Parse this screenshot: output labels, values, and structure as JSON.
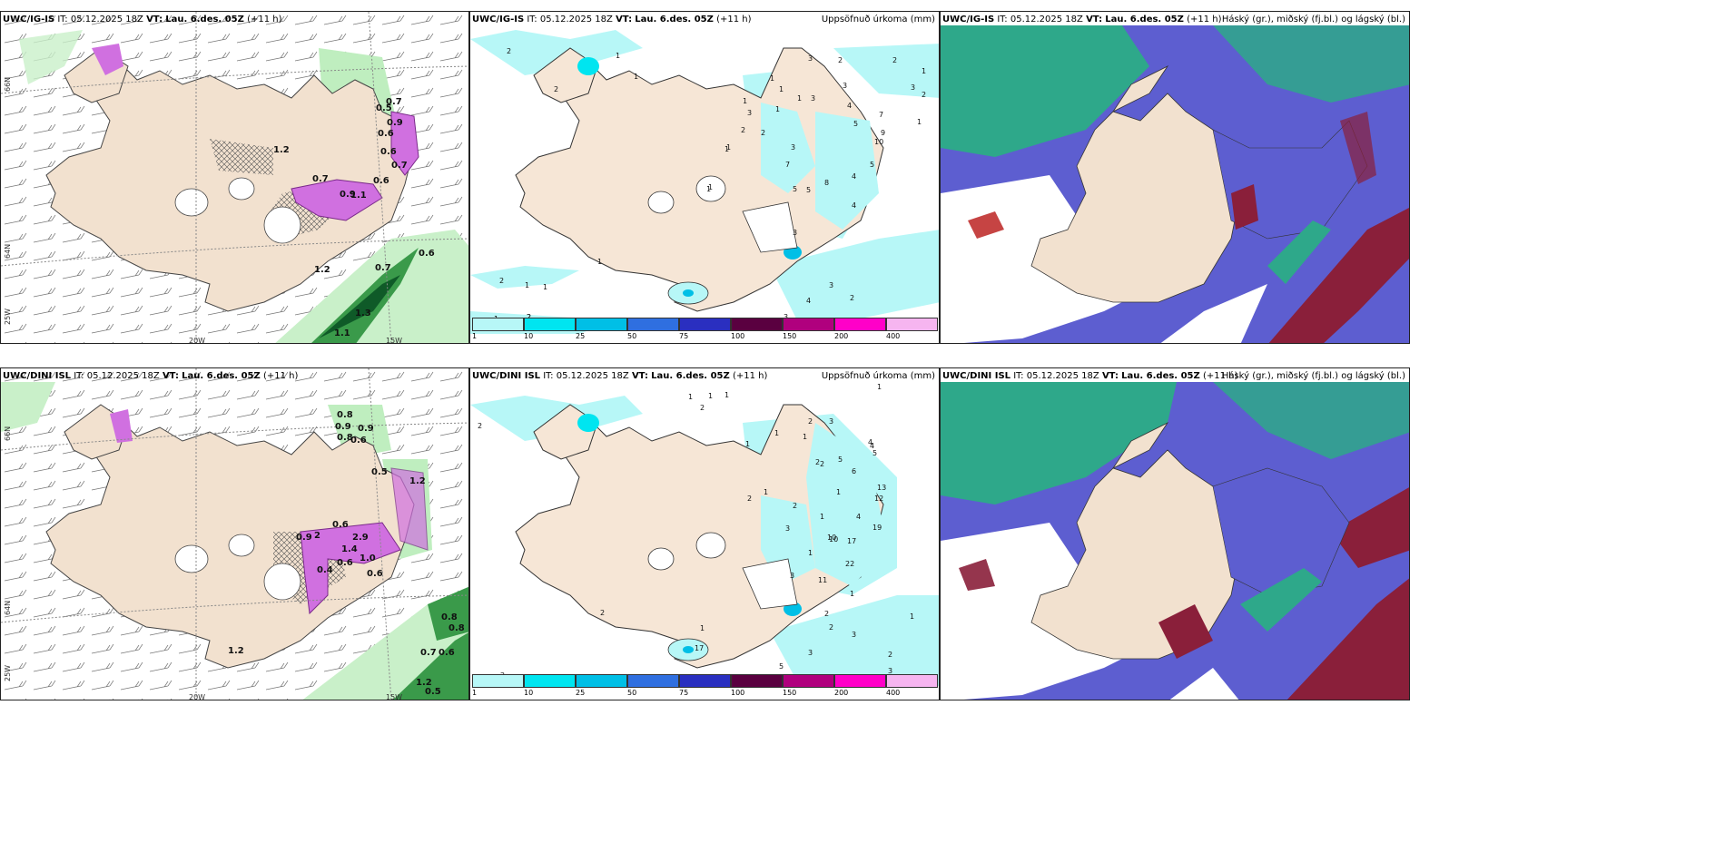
{
  "panels": {
    "p1": {
      "model": "UWC/IG-IS",
      "init_label": "IT:",
      "init": "05.12.2025 18Z",
      "valid_label": "VT:",
      "valid": "Lau. 6.des. 05Z",
      "lead": "(+11 h)",
      "right": ""
    },
    "p2": {
      "model": "UWC/IG-IS",
      "init_label": "IT:",
      "init": "05.12.2025 18Z",
      "valid_label": "VT:",
      "valid": "Lau. 6.des. 05Z",
      "lead": "(+11 h)",
      "right": "Uppsöfnuð úrkoma (mm)"
    },
    "p3": {
      "model": "UWC/IG-IS",
      "init_label": "IT:",
      "init": "05.12.2025 18Z",
      "valid_label": "VT:",
      "valid": "Lau. 6.des. 05Z",
      "lead": "(+11 h)",
      "right": "Háský (gr.), miðský (fj.bl.) og lágský (bl.)"
    },
    "p4": {
      "model": "UWC/DINI ISL",
      "init_label": "IT:",
      "init": "05.12.2025 18Z",
      "valid_label": "VT:",
      "valid": "Lau. 6.des. 05Z",
      "lead": "(+11 h)",
      "right": ""
    },
    "p5": {
      "model": "UWC/DINI ISL",
      "init_label": "IT:",
      "init": "05.12.2025 18Z",
      "valid_label": "VT:",
      "valid": "Lau. 6.des. 05Z",
      "lead": "(+11 h)",
      "right": "Uppsöfnuð úrkoma (mm)"
    },
    "p6": {
      "model": "UWC/DINI ISL",
      "init_label": "IT:",
      "init": "05.12.2025 18Z",
      "valid_label": "VT:",
      "valid": "Lau. 6.des. 05Z",
      "lead": "(+11 h)",
      "right": "Háský (gr.), miðský (fj.bl.) og lágský (bl.)"
    }
  },
  "grid_labels": {
    "lat66": "66N",
    "lat64": "64N",
    "lat25": "25W",
    "lon20": "20W",
    "lon15": "15W"
  },
  "colorbar": {
    "ticks": [
      "1",
      "10",
      "25",
      "50",
      "75",
      "100",
      "150",
      "200",
      "400"
    ],
    "colors": [
      "#b7f7f7",
      "#00e5f0",
      "#00bfe6",
      "#2f6fe0",
      "#2a2fc0",
      "#5a0040",
      "#b0007e",
      "#ff00c8",
      "#f6b5f0"
    ]
  },
  "colors": {
    "land": "#f3e3d3",
    "precip_green": "#8fe08f",
    "snow_purple": "#d070e0",
    "cloud_high": "#2ea88a",
    "cloud_mid": "#5d5ed0",
    "cloud_low": "#8a1f3a",
    "sea": "#ffffff"
  },
  "p1_values": [
    "0.7",
    "0.5",
    "0.9",
    "0.6",
    "0.7",
    "0.6",
    "0.9",
    "1.2",
    "1.1",
    "0.7",
    "0.6",
    "1.2",
    "0.7",
    "0.6",
    "1.3",
    "1.1"
  ],
  "p2_values": [
    "2",
    "1",
    "1",
    "2",
    "1",
    "3",
    "3",
    "2",
    "1",
    "1",
    "1",
    "3",
    "3",
    "4",
    "5",
    "7",
    "10",
    "9",
    "5",
    "4",
    "4",
    "3",
    "5",
    "5",
    "7",
    "8",
    "1",
    "2",
    "2",
    "1",
    "3",
    "1",
    "2",
    "1",
    "1",
    "2",
    "1",
    "3",
    "4",
    "3",
    "2",
    "2",
    "3",
    "2",
    "1",
    "1",
    "1",
    "1",
    "1",
    "2"
  ],
  "p4_values": [
    "0.8",
    "0.9",
    "0.8",
    "0.9",
    "0.6",
    "0.5",
    "1.2",
    "2",
    "2.9",
    "0.9",
    "1.4",
    "1.0",
    "0.6",
    "0.4",
    "0.6",
    "0.6",
    "0.8",
    "0.8",
    "0.7",
    "0.6",
    "1.2",
    "0.5",
    "1.2"
  ],
  "p5_values": [
    "2",
    "1",
    "1",
    "1",
    "2",
    "1",
    "1",
    "2",
    "1",
    "4",
    "1",
    "2",
    "3",
    "4",
    "5",
    "13",
    "12",
    "19",
    "10",
    "6",
    "4",
    "2",
    "5",
    "1",
    "1",
    "17",
    "22",
    "11",
    "10",
    "1",
    "3",
    "2",
    "3",
    "3",
    "3",
    "2",
    "2",
    "1",
    "2",
    "5",
    "5",
    "17",
    "1",
    "2",
    "2",
    "1",
    "3",
    "2",
    "1"
  ]
}
